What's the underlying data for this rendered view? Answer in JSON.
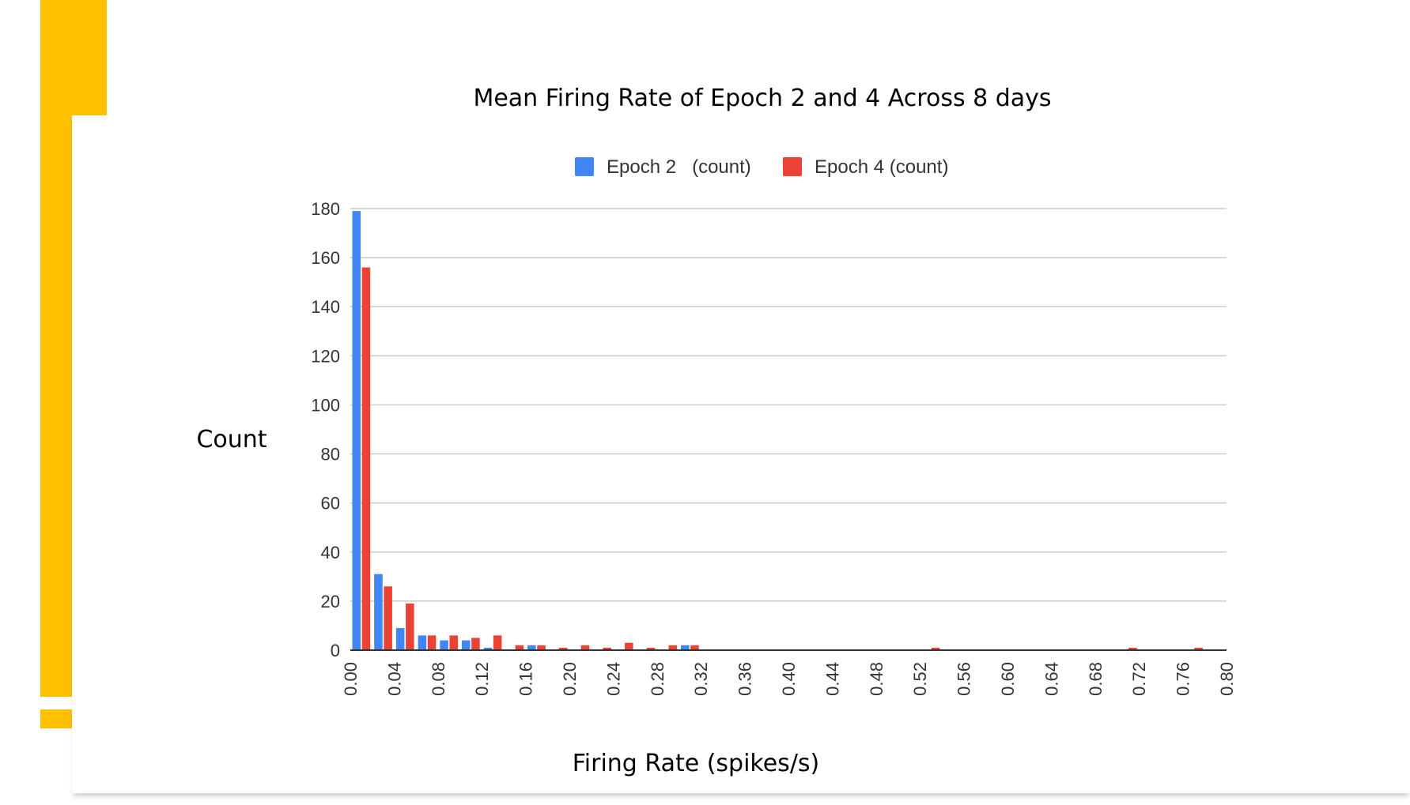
{
  "colors": {
    "background": "#ffffff",
    "accent_yellow": "#FFC000",
    "series_epoch2": "#4285F4",
    "series_epoch4": "#EA4335",
    "gridline": "#cccccc",
    "axis": "#333333"
  },
  "chart_data": {
    "type": "bar",
    "title": "Mean Firing Rate of Epoch 2 and 4 Across 8 days",
    "xlabel": "Firing Rate (spikes/s)",
    "ylabel": "Count",
    "ylim": [
      0,
      180
    ],
    "xlim": [
      0,
      0.8
    ],
    "y_ticks": [
      "0",
      "20",
      "40",
      "60",
      "80",
      "100",
      "120",
      "140",
      "160",
      "180"
    ],
    "x_ticks": [
      "0.00",
      "0.04",
      "0.08",
      "0.12",
      "0.16",
      "0.20",
      "0.24",
      "0.28",
      "0.32",
      "0.36",
      "0.40",
      "0.44",
      "0.48",
      "0.52",
      "0.56",
      "0.60",
      "0.64",
      "0.68",
      "0.72",
      "0.76",
      "0.80"
    ],
    "grid": true,
    "legend_position": "top",
    "bin_width": 0.02,
    "bins": [
      0.0,
      0.02,
      0.04,
      0.06,
      0.08,
      0.1,
      0.12,
      0.14,
      0.16,
      0.18,
      0.2,
      0.22,
      0.24,
      0.26,
      0.28,
      0.3,
      0.52,
      0.7,
      0.76
    ],
    "series": [
      {
        "name": "Epoch 2   (count)",
        "color": "#4285F4",
        "values": [
          179,
          31,
          9,
          6,
          4,
          4,
          1,
          0,
          2,
          0,
          0,
          0,
          0,
          0,
          0,
          2,
          0,
          0,
          0
        ]
      },
      {
        "name": "Epoch 4 (count)",
        "color": "#EA4335",
        "values": [
          156,
          26,
          19,
          6,
          6,
          5,
          6,
          2,
          2,
          1,
          2,
          1,
          3,
          1,
          2,
          2,
          1,
          1,
          1
        ]
      }
    ]
  }
}
